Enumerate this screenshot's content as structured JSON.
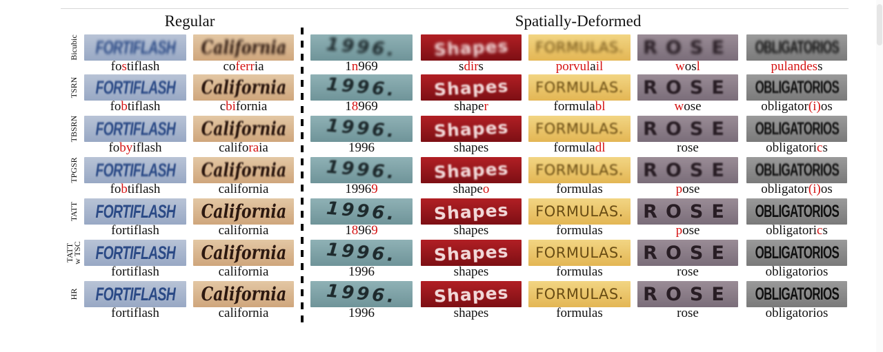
{
  "headers": {
    "regular": "Regular",
    "spatial": "Spatially-Deformed"
  },
  "row_labels": [
    "Bicubic",
    "TSRN",
    "TBSRN",
    "TPGSR",
    "TATT",
    "TATT w TSC",
    "HR"
  ],
  "image_texts": [
    "FORTIFLASH",
    "California",
    "1996.",
    "Shapes",
    "FORMULAS.",
    "ROSE",
    "OBLIGATORIOS"
  ],
  "rows": [
    [
      "fostiflash",
      "coferria",
      "1n969",
      "sdirs",
      "porvulail",
      "wosl",
      "pulandess"
    ],
    [
      "fobtiflash",
      "cbifornia",
      "18969",
      "shaper",
      "formulabl",
      "wose",
      "obligator(i)os"
    ],
    [
      "fobyiflash",
      "califoraia",
      "1996",
      "shapes",
      "formuladl",
      "rose",
      "obligatorics"
    ],
    [
      "fobtiflash",
      "california",
      "19969",
      "shapeo",
      "formulas",
      "pose",
      "obligator(i)os"
    ],
    [
      "fortiflash",
      "california",
      "18969",
      "shapes",
      "formulas",
      "pose",
      "obligatorics"
    ],
    [
      "fortiflash",
      "california",
      "1996",
      "shapes",
      "formulas",
      "rose",
      "obligatorios"
    ],
    [
      "fortiflash",
      "california",
      "1996",
      "shapes",
      "formulas",
      "rose",
      "obligatorios"
    ]
  ],
  "errors": [
    [
      [
        [
          2,
          3
        ]
      ],
      [
        [
          2,
          6
        ]
      ],
      [
        [
          1,
          2
        ]
      ],
      [
        [
          1,
          4
        ]
      ],
      [
        [
          0,
          6
        ],
        [
          7,
          9
        ]
      ],
      [
        [
          0,
          1
        ],
        [
          3,
          4
        ]
      ],
      [
        [
          0,
          8
        ]
      ]
    ],
    [
      [
        [
          2,
          3
        ]
      ],
      [
        [
          1,
          3
        ]
      ],
      [
        [
          1,
          2
        ]
      ],
      [
        [
          5,
          6
        ]
      ],
      [
        [
          7,
          9
        ]
      ],
      [
        [
          0,
          1
        ]
      ],
      [
        [
          9,
          12
        ]
      ]
    ],
    [
      [
        [
          2,
          4
        ]
      ],
      [
        [
          6,
          8
        ]
      ],
      [],
      [],
      [
        [
          7,
          9
        ]
      ],
      [],
      [
        [
          10,
          11
        ]
      ]
    ],
    [
      [
        [
          2,
          3
        ]
      ],
      [],
      [
        [
          4,
          5
        ]
      ],
      [
        [
          5,
          6
        ]
      ],
      [],
      [
        [
          0,
          1
        ]
      ],
      [
        [
          9,
          12
        ]
      ]
    ],
    [
      [],
      [],
      [
        [
          1,
          2
        ],
        [
          4,
          5
        ]
      ],
      [],
      [],
      [
        [
          0,
          1
        ]
      ],
      [
        [
          10,
          11
        ]
      ]
    ],
    [
      [],
      [],
      [],
      [],
      [],
      [],
      []
    ],
    [
      [],
      [],
      [],
      [],
      [],
      [],
      []
    ]
  ],
  "colors": {
    "error_text": "#d51313"
  }
}
